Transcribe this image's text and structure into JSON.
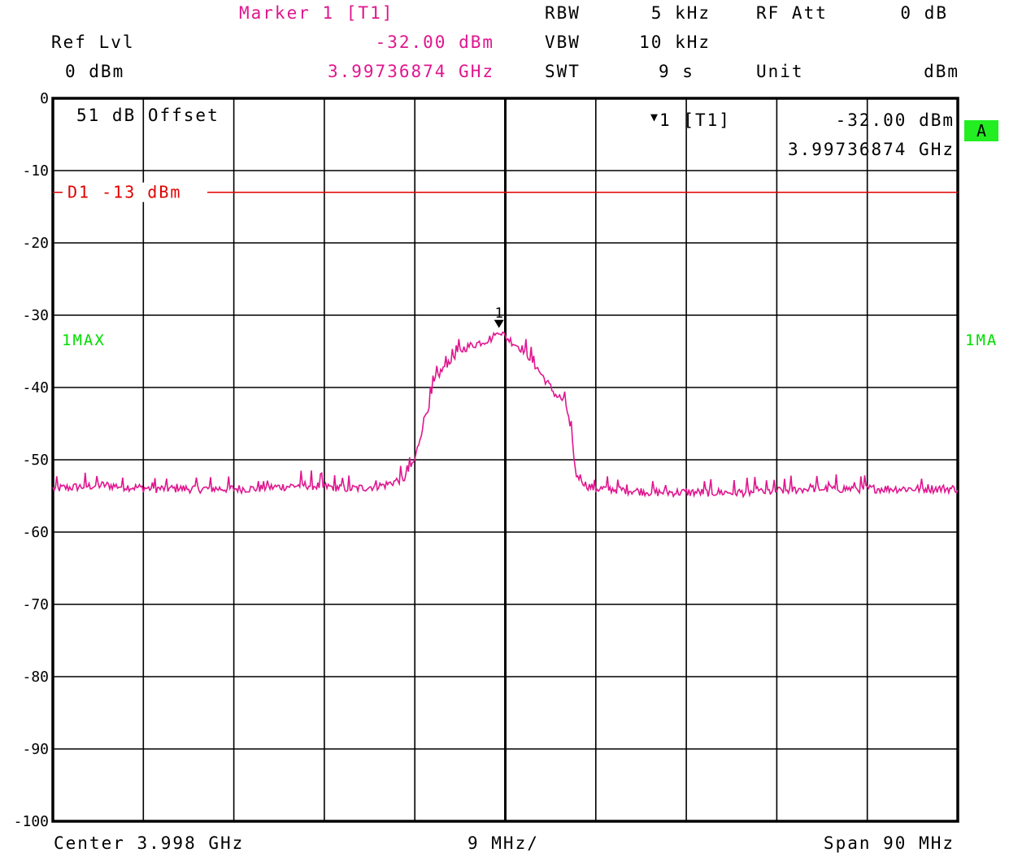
{
  "header": {
    "marker_title": "Marker 1 [T1]",
    "ref_lvl_label": "Ref Lvl",
    "ref_lvl_value": "0 dBm",
    "marker_level": "-32.00 dBm",
    "marker_freq": "3.99736874 GHz",
    "rbw_label": "RBW",
    "rbw_value": "5 kHz",
    "vbw_label": "VBW",
    "vbw_value": "10 kHz",
    "swt_label": "SWT",
    "swt_value": "9 s",
    "rfatt_label": "RF Att",
    "rfatt_value": "0 dB",
    "unit_label": "Unit",
    "unit_value": "dBm"
  },
  "screen": {
    "offset_text": "51 dB Offset",
    "marker_info_label": "1 [T1]",
    "marker_info_level": "-32.00 dBm",
    "marker_info_freq": "3.99736874 GHz",
    "badge": "A",
    "trace_left_label": "1MAX",
    "trace_right_label": "1MA",
    "marker_number": "1"
  },
  "footer": {
    "center": "Center 3.998 GHz",
    "div": "9 MHz/",
    "span": "Span 90 MHz"
  },
  "chart_data": {
    "type": "line",
    "y_tick_labels": [
      "0",
      "-10",
      "-20",
      "-30",
      "-40",
      "-50",
      "-60",
      "-70",
      "-80",
      "-90",
      "-100"
    ],
    "ylim": [
      -100,
      0
    ],
    "xlim_mhz_offset": [
      -45,
      45
    ],
    "x_divisions": 10,
    "display_line": {
      "label": "D1 -13 dBm",
      "level": -13,
      "color": "#e00000"
    },
    "trace_color": "#e0168f",
    "marker": {
      "x_offset_mhz": -0.63,
      "level": -32
    },
    "series": [
      {
        "x_offset_mhz": [
          -45,
          -40,
          -35,
          -30,
          -25,
          -20,
          -15,
          -12,
          -10,
          -9,
          -8,
          -7.5,
          -7,
          -6,
          -5,
          -4,
          -3,
          -2,
          -1,
          -0.63,
          0,
          1,
          2,
          3,
          4,
          5,
          6,
          6.5,
          7,
          7.5,
          8,
          9,
          10,
          15,
          20,
          25,
          30,
          35,
          40,
          45
        ],
        "values": [
          -54,
          -53.5,
          -54,
          -54,
          -54,
          -53.5,
          -54,
          -53.5,
          -52.5,
          -50,
          -44,
          -42,
          -39,
          -37,
          -35.5,
          -34.5,
          -34,
          -33.5,
          -33,
          -32,
          -33,
          -34,
          -35,
          -37,
          -39,
          -41,
          -42,
          -46,
          -52,
          -52.5,
          -53.5,
          -54,
          -54,
          -54.5,
          -54.5,
          -54.5,
          -54,
          -54,
          -54,
          -54
        ]
      }
    ]
  }
}
